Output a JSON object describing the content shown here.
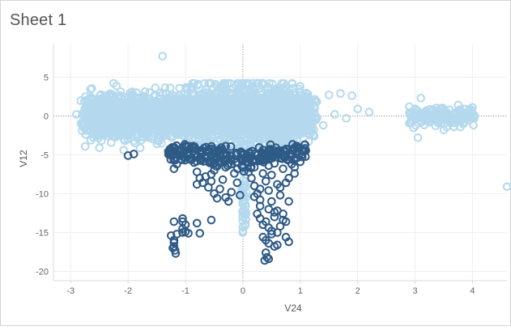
{
  "worksheet": {
    "title": "Sheet 1"
  },
  "chart_data": {
    "type": "scatter",
    "title": "",
    "xlabel": "V24",
    "ylabel": "V12",
    "xlim": [
      -3.3,
      4.6
    ],
    "ylim": [
      -21.2,
      9.2
    ],
    "xticks": [
      -3,
      -2,
      -1,
      0,
      1,
      2,
      3,
      4
    ],
    "yticks": [
      5,
      0,
      -5,
      -10,
      -15,
      -20
    ],
    "grid": true,
    "zero_lines": true,
    "legend": "none",
    "marker": "open-circle",
    "colors": {
      "light": "#b4d9ee",
      "dark": "#2e5a86"
    },
    "series": [
      {
        "color_key": "dark",
        "points": [
          [
            -2.0,
            -5.1
          ],
          [
            -1.9,
            -4.9
          ],
          [
            -1.2,
            -4.7
          ],
          [
            -1.15,
            -6.2
          ],
          [
            -1.2,
            -6.8
          ],
          [
            -0.85,
            -6.0
          ],
          [
            -0.8,
            -7.2
          ],
          [
            -0.75,
            -8.0
          ],
          [
            -0.8,
            -8.8
          ],
          [
            -0.7,
            -8.6
          ],
          [
            -0.6,
            -9.2
          ],
          [
            -0.55,
            -7.5
          ],
          [
            -0.5,
            -10.0
          ],
          [
            -0.45,
            -6.5
          ],
          [
            -0.4,
            -9.4
          ],
          [
            -0.35,
            -8.2
          ],
          [
            -0.3,
            -10.5
          ],
          [
            -0.25,
            -11.0
          ],
          [
            -0.2,
            -9.8
          ],
          [
            -0.15,
            -7.4
          ],
          [
            -0.1,
            -8.6
          ],
          [
            -0.05,
            -10.2
          ],
          [
            -0.4,
            -5.8
          ],
          [
            -0.3,
            -6.6
          ],
          [
            -0.2,
            -6.2
          ],
          [
            -0.1,
            -6.0
          ],
          [
            -0.5,
            -7.0
          ],
          [
            -0.65,
            -7.8
          ],
          [
            -0.45,
            -10.6
          ],
          [
            -0.55,
            -8.4
          ],
          [
            -1.05,
            -13.2
          ],
          [
            -1.05,
            -13.6
          ],
          [
            -1.0,
            -14.0
          ],
          [
            -1.05,
            -14.5
          ],
          [
            -1.0,
            -14.9
          ],
          [
            -1.2,
            -13.6
          ],
          [
            -1.15,
            -15.2
          ],
          [
            -0.95,
            -15.1
          ],
          [
            -0.8,
            -13.8
          ],
          [
            -0.55,
            -13.4
          ],
          [
            -0.75,
            -15.1
          ],
          [
            -1.2,
            -16.0
          ],
          [
            -1.25,
            -15.4
          ],
          [
            -1.05,
            -15.0
          ],
          [
            -1.2,
            -16.3
          ],
          [
            -1.2,
            -16.8
          ],
          [
            -1.18,
            -17.3
          ],
          [
            -1.17,
            -17.7
          ],
          [
            -1.22,
            -17.0
          ],
          [
            0.1,
            -7.2
          ],
          [
            0.15,
            -8.0
          ],
          [
            0.2,
            -9.0
          ],
          [
            0.25,
            -10.0
          ],
          [
            0.3,
            -10.8
          ],
          [
            0.35,
            -7.4
          ],
          [
            0.4,
            -8.4
          ],
          [
            0.45,
            -9.6
          ],
          [
            0.5,
            -11.0
          ],
          [
            0.55,
            -12.4
          ],
          [
            0.6,
            -8.8
          ],
          [
            0.65,
            -10.2
          ],
          [
            0.7,
            -12.6
          ],
          [
            0.75,
            -13.6
          ],
          [
            0.8,
            -11.0
          ],
          [
            0.85,
            -6.2
          ],
          [
            0.9,
            -6.6
          ],
          [
            1.0,
            -5.9
          ],
          [
            0.2,
            -6.6
          ],
          [
            0.1,
            -6.0
          ],
          [
            0.3,
            -13.2
          ],
          [
            0.35,
            -14.0
          ],
          [
            0.4,
            -13.6
          ],
          [
            0.45,
            -14.4
          ],
          [
            0.5,
            -14.8
          ],
          [
            0.55,
            -13.0
          ],
          [
            0.6,
            -15.0
          ],
          [
            0.65,
            -14.2
          ],
          [
            0.7,
            -13.4
          ],
          [
            0.75,
            -15.6
          ],
          [
            0.35,
            -15.6
          ],
          [
            0.4,
            -16.0
          ],
          [
            0.45,
            -16.4
          ],
          [
            0.5,
            -15.2
          ],
          [
            0.55,
            -16.8
          ],
          [
            0.4,
            -17.6
          ],
          [
            0.42,
            -18.2
          ],
          [
            0.38,
            -18.6
          ],
          [
            0.45,
            -18.4
          ],
          [
            0.6,
            -16.6
          ],
          [
            0.25,
            -12.6
          ],
          [
            0.3,
            -11.6
          ],
          [
            0.45,
            -12.0
          ],
          [
            0.6,
            -12.2
          ],
          [
            0.8,
            -16.2
          ],
          [
            0.8,
            -8.0
          ],
          [
            0.9,
            -7.4
          ],
          [
            0.7,
            -6.8
          ],
          [
            0.55,
            -6.1
          ],
          [
            0.45,
            -6.4
          ],
          [
            0.3,
            -9.4
          ],
          [
            0.2,
            -10.4
          ],
          [
            0.65,
            -9.2
          ],
          [
            0.75,
            -8.6
          ],
          [
            0.5,
            -7.6
          ]
        ]
      },
      {
        "color_key": "light",
        "points": [
          [
            -1.4,
            7.7
          ],
          [
            4.6,
            -9.1
          ],
          [
            2.2,
            0.5
          ],
          [
            1.9,
            2.6
          ],
          [
            1.7,
            2.9
          ],
          [
            3.1,
            2.3
          ],
          [
            3.05,
            -2.8
          ],
          [
            3.5,
            -1.8
          ],
          [
            3.7,
            -0.6
          ],
          [
            4.0,
            1.1
          ],
          [
            3.0,
            0.9
          ],
          [
            3.1,
            0.3
          ],
          [
            3.2,
            -0.4
          ],
          [
            3.3,
            0.6
          ],
          [
            3.4,
            -0.9
          ],
          [
            3.5,
            0.2
          ],
          [
            3.6,
            0.8
          ],
          [
            3.9,
            -0.1
          ],
          [
            3.95,
            0.5
          ],
          [
            3.85,
            0.9
          ],
          [
            2.9,
            1.2
          ],
          [
            3.55,
            -1.4
          ],
          [
            3.25,
            -0.8
          ],
          [
            3.7,
            0.4
          ],
          [
            3.45,
            1.0
          ],
          [
            -2.8,
            -1.9
          ],
          [
            -2.9,
            0.2
          ],
          [
            -2.7,
            1.2
          ],
          [
            -2.5,
            -4.1
          ],
          [
            -2.6,
            -2.8
          ],
          [
            1.5,
            2.7
          ],
          [
            1.4,
            -1.2
          ],
          [
            1.6,
            0.2
          ],
          [
            2.0,
            0.9
          ],
          [
            1.8,
            -0.3
          ],
          [
            0.0,
            -13.5
          ],
          [
            0.0,
            -14.3
          ],
          [
            0.0,
            -15.0
          ],
          [
            0.0,
            -12.5
          ],
          [
            0.0,
            -11.2
          ]
        ]
      }
    ]
  }
}
